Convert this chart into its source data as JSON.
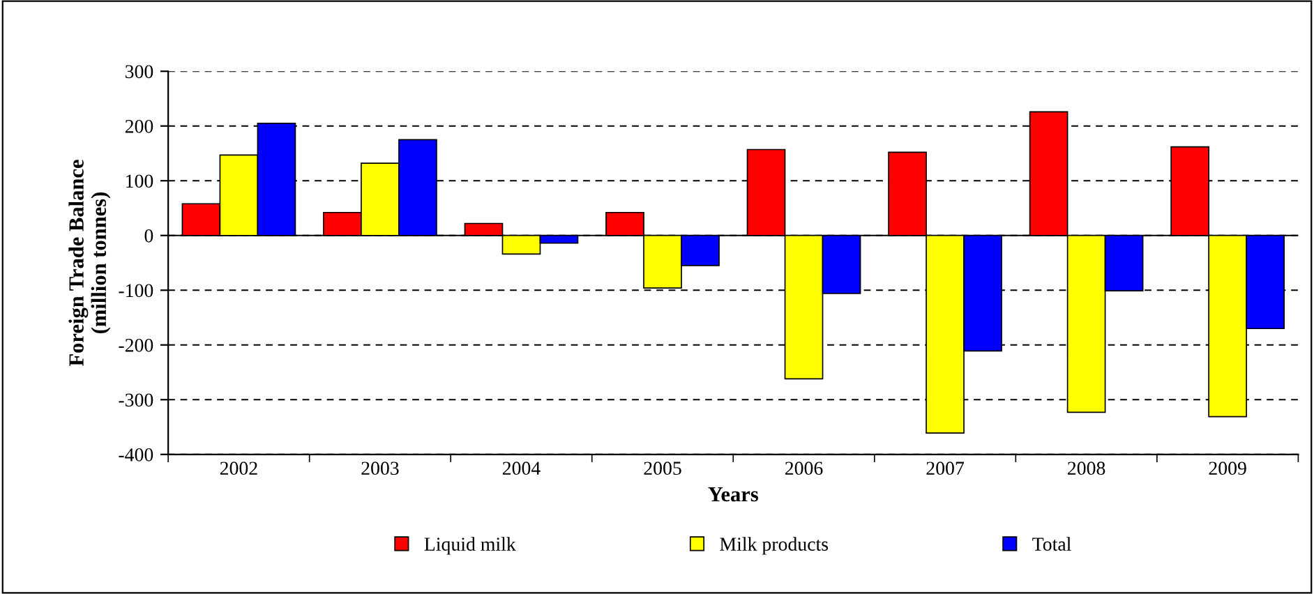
{
  "chart_data": {
    "type": "bar",
    "xlabel": "Years",
    "ylabel": "Foreign Trade Balance\n(million tonnes)",
    "categories": [
      "2002",
      "2003",
      "2004",
      "2005",
      "2006",
      "2007",
      "2008",
      "2009"
    ],
    "series": [
      {
        "name": "Liquid milk",
        "color": "#ff0000",
        "values": [
          58,
          42,
          22,
          42,
          157,
          152,
          226,
          162
        ]
      },
      {
        "name": "Milk products",
        "color": "#ffff00",
        "values": [
          147,
          132,
          -34,
          -96,
          -262,
          -361,
          -323,
          -331
        ]
      },
      {
        "name": "Total",
        "color": "#0000ff",
        "values": [
          205,
          175,
          -14,
          -55,
          -106,
          -211,
          -101,
          -170
        ]
      }
    ],
    "ylim": [
      -400,
      300
    ],
    "yticks": [
      -400,
      -300,
      -200,
      -100,
      0,
      100,
      200,
      300
    ],
    "grid": "y",
    "legend": "bottom"
  }
}
